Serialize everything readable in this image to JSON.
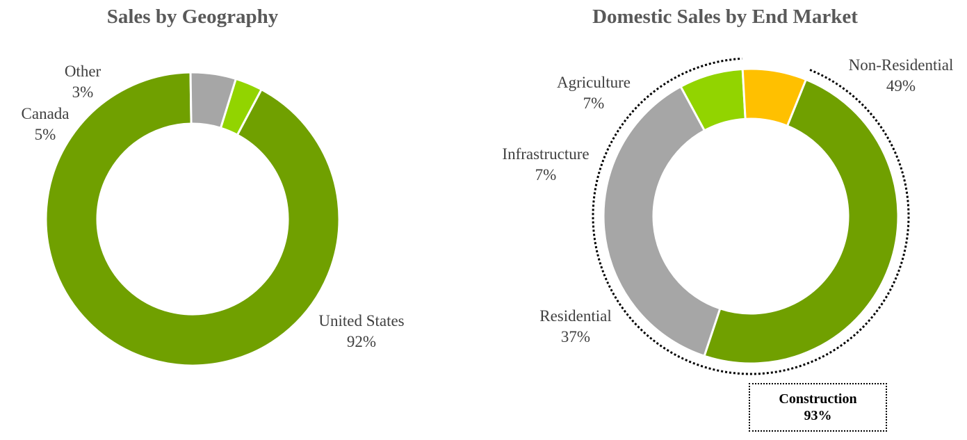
{
  "chart_data": [
    {
      "type": "pie",
      "variant": "donut",
      "title": "Sales by Geography",
      "slices": [
        {
          "name": "United States",
          "value": 92,
          "label": "92%",
          "color": "#70A000"
        },
        {
          "name": "Canada",
          "value": 5,
          "label": "5%",
          "color": "#A6A6A6"
        },
        {
          "name": "Other",
          "value": 3,
          "label": "3%",
          "color": "#92D400"
        }
      ]
    },
    {
      "type": "pie",
      "variant": "donut",
      "title": "Domestic Sales by End Market",
      "slices": [
        {
          "name": "Non-Residential",
          "value": 49,
          "label": "49%",
          "color": "#70A000"
        },
        {
          "name": "Residential",
          "value": 37,
          "label": "37%",
          "color": "#A6A6A6"
        },
        {
          "name": "Infrastructure",
          "value": 7,
          "label": "7%",
          "color": "#92D400"
        },
        {
          "name": "Agriculture",
          "value": 7,
          "label": "7%",
          "color": "#FFC000"
        }
      ],
      "annotation": {
        "title": "Construction",
        "value": "93%",
        "covers": [
          "Non-Residential",
          "Residential",
          "Infrastructure"
        ]
      }
    }
  ]
}
